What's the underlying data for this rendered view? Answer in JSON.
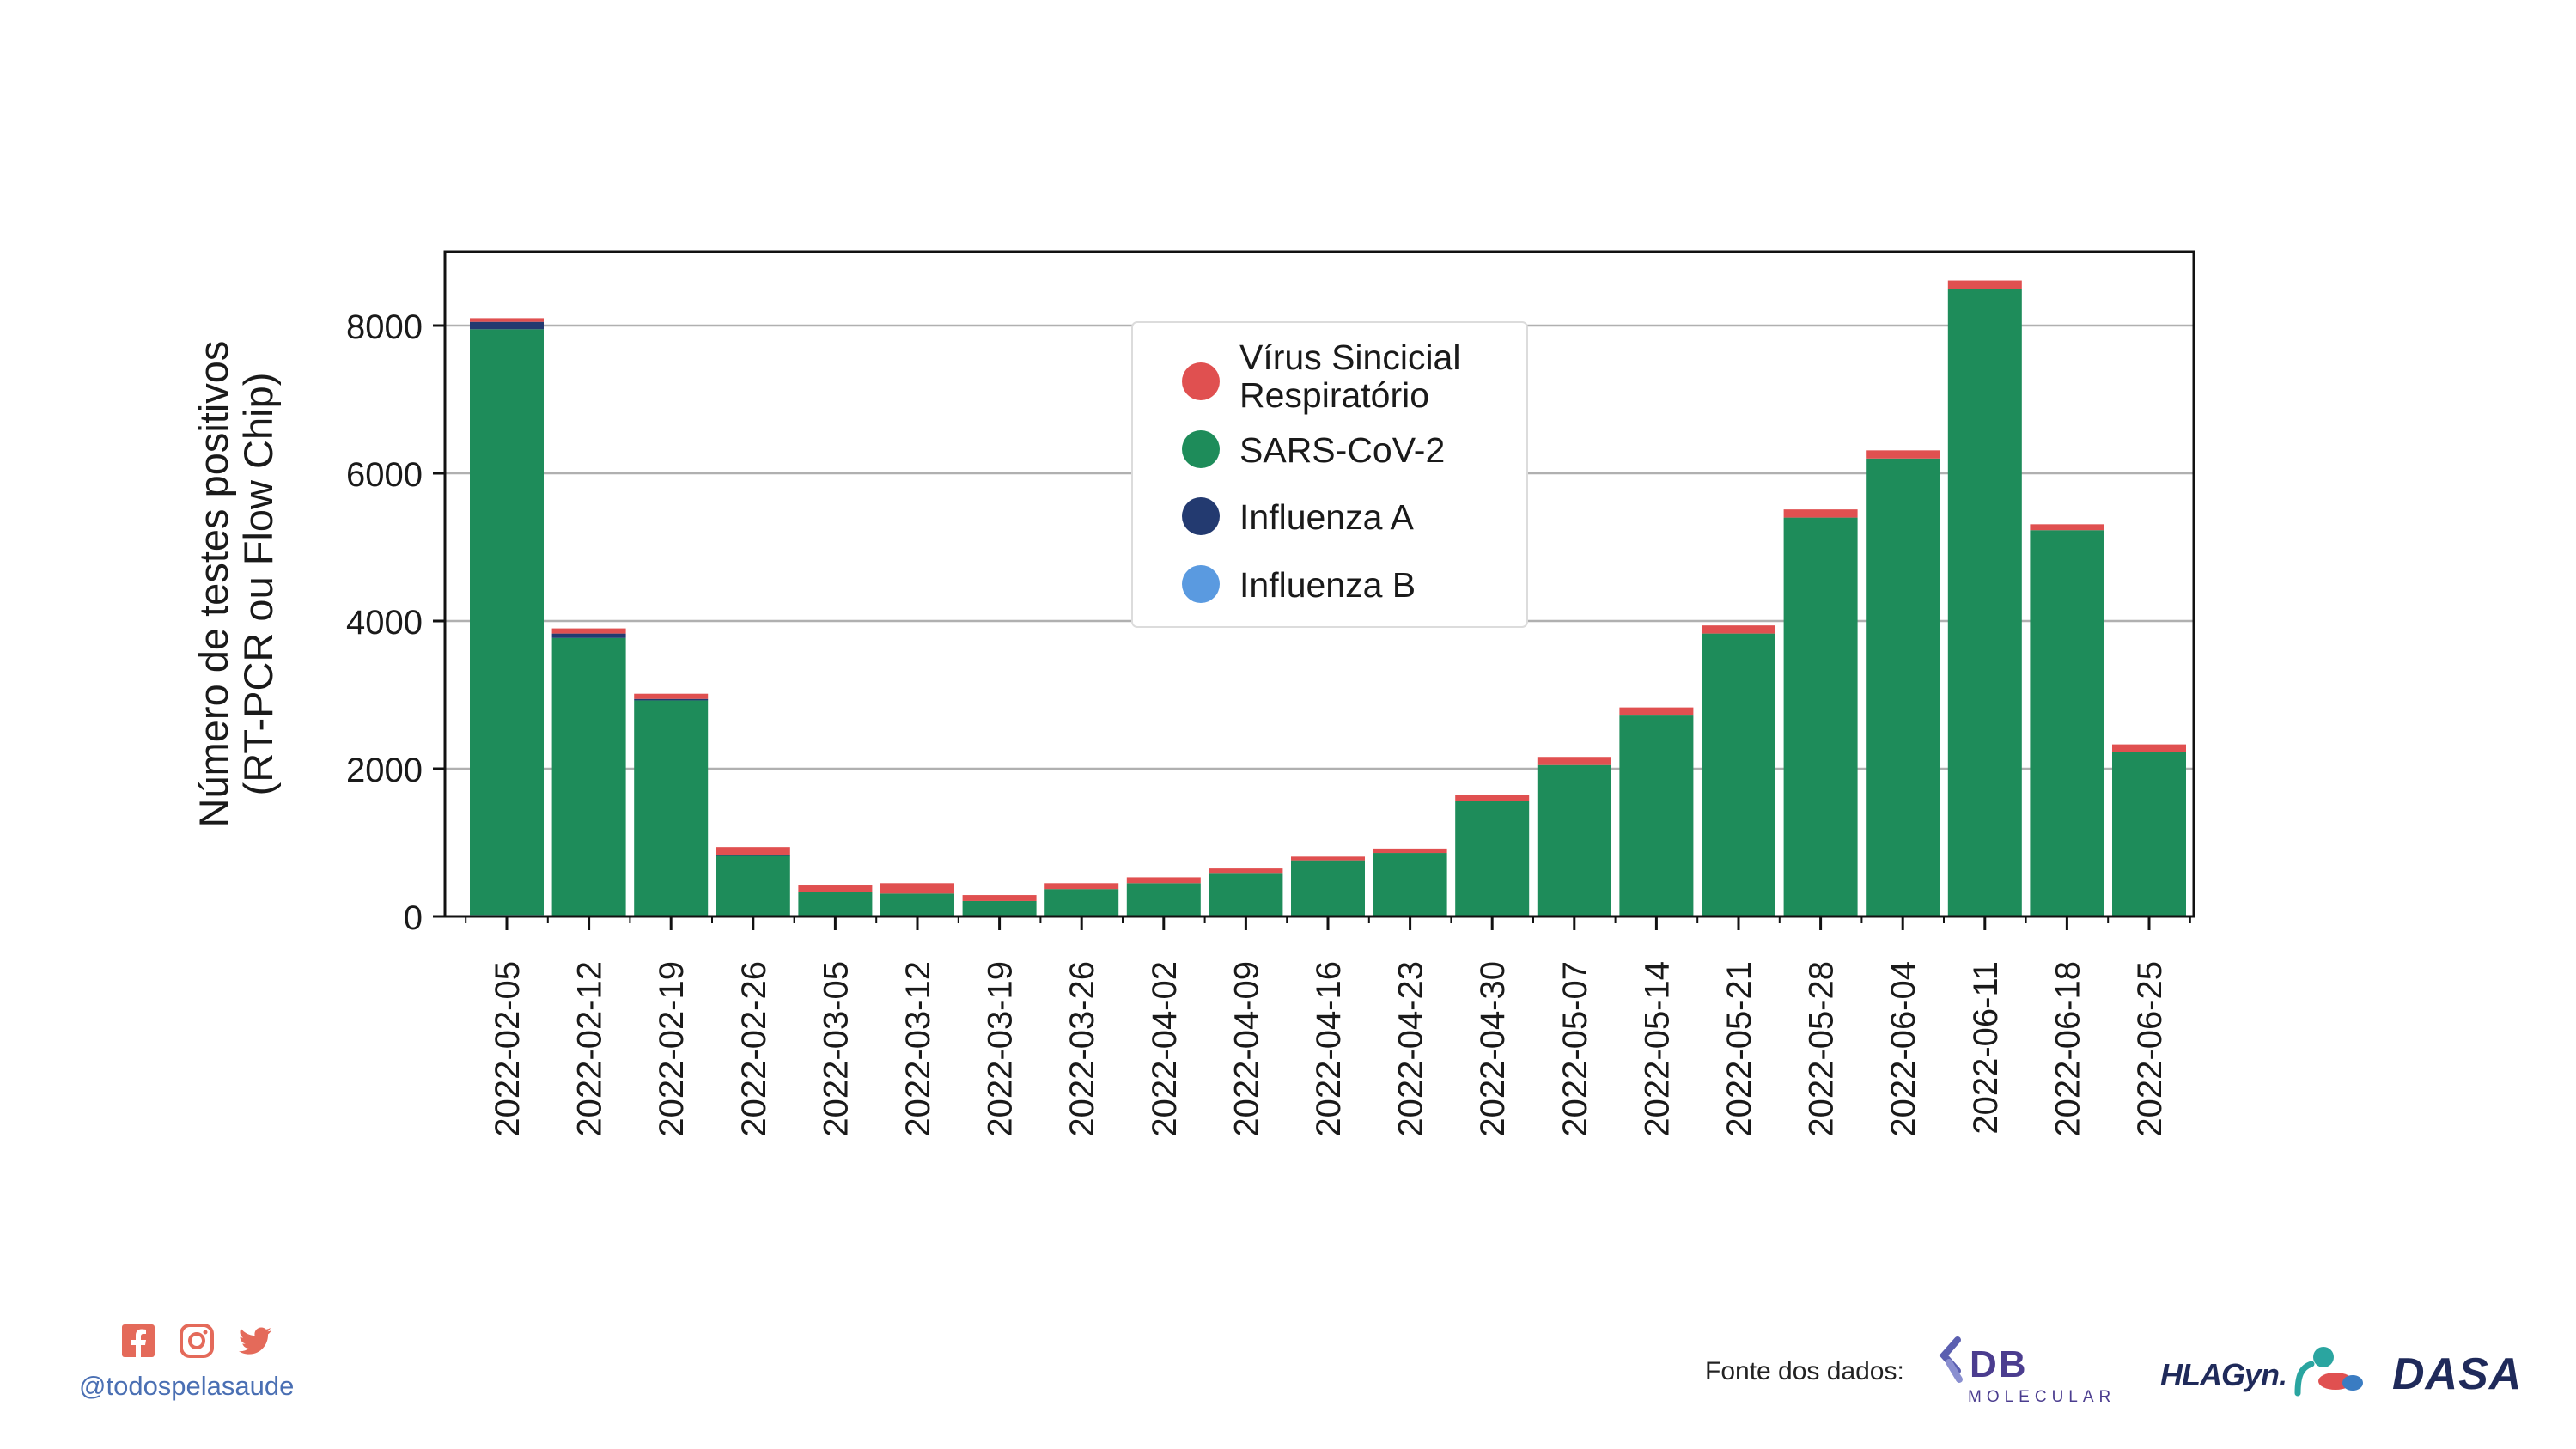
{
  "chart_data": {
    "type": "bar",
    "stacked": true,
    "categories": [
      "2022-02-05",
      "2022-02-12",
      "2022-02-19",
      "2022-02-26",
      "2022-03-05",
      "2022-03-12",
      "2022-03-19",
      "2022-03-26",
      "2022-04-02",
      "2022-04-09",
      "2022-04-16",
      "2022-04-23",
      "2022-04-30",
      "2022-05-07",
      "2022-05-14",
      "2022-05-21",
      "2022-05-28",
      "2022-06-04",
      "2022-06-11",
      "2022-06-18",
      "2022-06-25"
    ],
    "series": [
      {
        "name": "Influenza B",
        "color": "#5a9ae0",
        "values": [
          20,
          10,
          5,
          0,
          0,
          0,
          0,
          0,
          0,
          0,
          0,
          0,
          0,
          0,
          0,
          0,
          0,
          0,
          0,
          0,
          0
        ]
      },
      {
        "name": "SARS-CoV-2",
        "color": "#1e8c5a",
        "values": [
          7930,
          3760,
          2920,
          820,
          330,
          310,
          210,
          370,
          450,
          590,
          760,
          860,
          1560,
          2050,
          2720,
          3830,
          5400,
          6200,
          8500,
          5230,
          2230
        ]
      },
      {
        "name": "Influenza A",
        "color": "#233a70",
        "values": [
          100,
          60,
          20,
          10,
          0,
          0,
          0,
          0,
          0,
          0,
          0,
          0,
          0,
          0,
          0,
          0,
          0,
          0,
          0,
          0,
          0
        ]
      },
      {
        "name": "Vírus Sincicial Respiratório",
        "color": "#e05050",
        "values": [
          50,
          70,
          70,
          110,
          100,
          140,
          80,
          80,
          80,
          60,
          50,
          60,
          90,
          110,
          110,
          110,
          110,
          110,
          110,
          80,
          100
        ]
      }
    ],
    "ylabel": [
      "Número de testes positivos",
      "(RT-PCR ou Flow Chip)"
    ],
    "xlabel": "",
    "ylim": [
      0,
      9000
    ],
    "yticks": [
      0,
      2000,
      4000,
      6000,
      8000
    ],
    "grid": "horizontal",
    "legend": {
      "position": "upper-center",
      "entries": [
        {
          "label": [
            "Vírus Sincicial",
            "Respiratório"
          ],
          "color": "#e05050"
        },
        {
          "label": [
            "SARS-CoV-2"
          ],
          "color": "#1e8c5a"
        },
        {
          "label": [
            "Influenza A"
          ],
          "color": "#233a70"
        },
        {
          "label": [
            "Influenza B"
          ],
          "color": "#5a9ae0"
        }
      ]
    }
  },
  "footer": {
    "social_icons": [
      "facebook-icon",
      "instagram-icon",
      "twitter-icon"
    ],
    "social_color": "#e46a5a",
    "handle": "@todospelasaude",
    "sources_label": "Fonte dos dados:",
    "logos": {
      "db_text": "DB",
      "db_sub": "MOLECULAR",
      "hla_text": "HLAGyn.",
      "dasa_text": "DASA"
    }
  }
}
